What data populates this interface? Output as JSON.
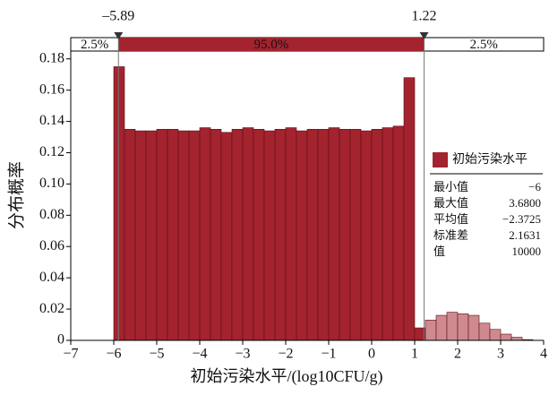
{
  "chart_data": {
    "type": "histogram",
    "xlabel": "初始污染水平/(log10CFU/g)",
    "ylabel": "分布概率",
    "bins": [
      -6,
      -5.75,
      -5.5,
      -5.25,
      -5,
      -4.75,
      -4.5,
      -4.25,
      -4,
      -3.75,
      -3.5,
      -3.25,
      -3,
      -2.75,
      -2.5,
      -2.25,
      -2,
      -1.75,
      -1.5,
      -1.25,
      -1,
      -0.75,
      -0.5,
      -0.25,
      0,
      0.25,
      0.5,
      0.75,
      1,
      1.25,
      1.5,
      1.75,
      2,
      2.25,
      2.5,
      2.75,
      3,
      3.25,
      3.5,
      3.75
    ],
    "series": [
      {
        "name": "初始污染水平",
        "color": "#a3232f",
        "outside_color": "#cf8a90",
        "values": [
          0.175,
          0.135,
          0.134,
          0.134,
          0.135,
          0.135,
          0.134,
          0.134,
          0.136,
          0.135,
          0.133,
          0.135,
          0.136,
          0.135,
          0.134,
          0.135,
          0.136,
          0.134,
          0.135,
          0.135,
          0.136,
          0.135,
          0.135,
          0.134,
          0.135,
          0.136,
          0.137,
          0.168,
          0.008,
          0.013,
          0.016,
          0.018,
          0.017,
          0.016,
          0.011,
          0.007,
          0.004,
          0.002,
          0.0005
        ]
      }
    ],
    "xlim": [
      -7,
      4
    ],
    "xticks": [
      {
        "value": -7,
        "label": "−7"
      },
      {
        "value": -6,
        "label": "−6"
      },
      {
        "value": -5,
        "label": "−5"
      },
      {
        "value": -4,
        "label": "−4"
      },
      {
        "value": -3,
        "label": "−3"
      },
      {
        "value": -2,
        "label": "−2"
      },
      {
        "value": -1,
        "label": "−1"
      },
      0,
      1,
      2,
      3,
      4
    ],
    "ylim": [
      0,
      0.185
    ],
    "yticks": [
      0,
      0.02,
      0.04,
      0.06,
      0.08,
      {
        "value": 0.1,
        "label": "0.10"
      },
      0.12,
      0.14,
      0.16,
      0.18
    ],
    "delimiters": [
      {
        "value": -5.89,
        "label": "–5.89"
      },
      {
        "value": 1.22,
        "label": "1.22"
      }
    ],
    "regions": [
      {
        "value": 2.5,
        "label": "2.5%"
      },
      {
        "value": 95,
        "label": "95.0%"
      },
      {
        "value": 2.5,
        "label": "2.5%"
      }
    ],
    "stats": [
      [
        "最小值",
        "−6"
      ],
      [
        "最大值",
        "3.6800"
      ],
      [
        "平均值",
        "−2.3725"
      ],
      [
        "标准差",
        "2.1631"
      ],
      [
        "值",
        "10000"
      ]
    ]
  }
}
